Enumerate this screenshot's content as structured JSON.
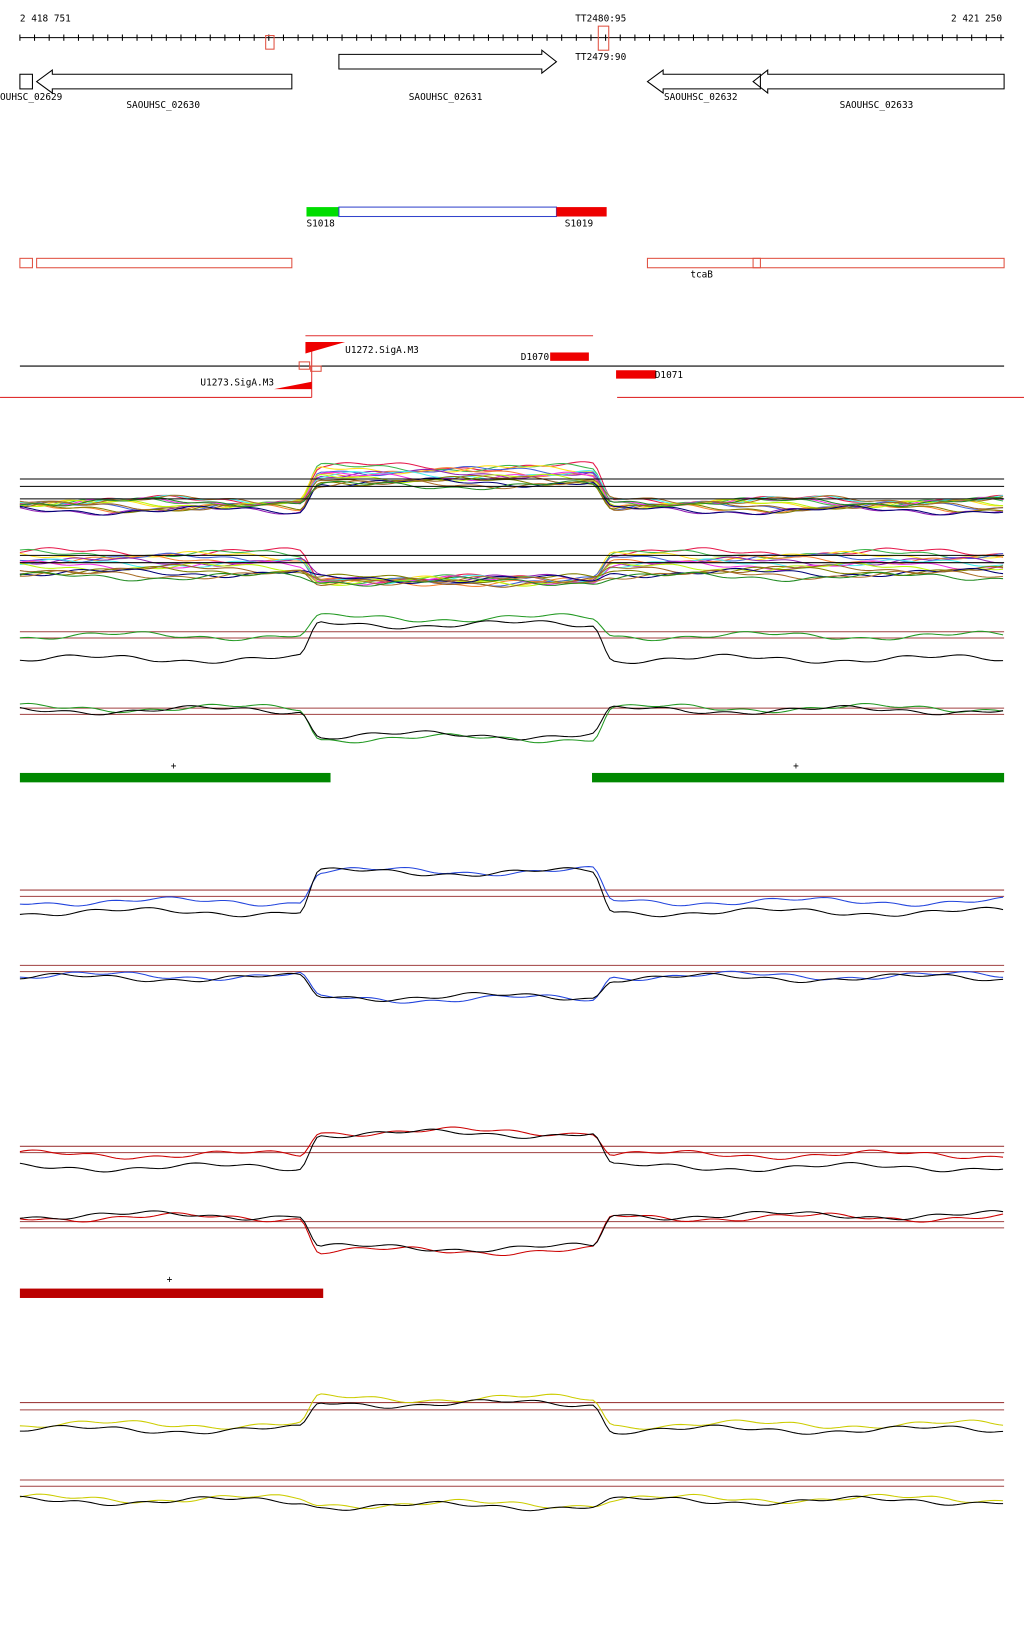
{
  "ruler": {
    "start": "2 418 751",
    "end": "2 421 250"
  },
  "terminators": [
    "TT2480:95",
    "TT2479:90"
  ],
  "genes": [
    "OUHSC_02629",
    "SAOUHSC_02630",
    "SAOUHSC_02631",
    "SAOUHSC_02632",
    "SAOUHSC_02633"
  ],
  "segments": [
    "S1018",
    "S1019"
  ],
  "operon_label": "tcaB",
  "promoters": [
    "U1272.SigA.M3",
    "D1070",
    "U1273.SigA.M3",
    "D1071"
  ],
  "strand_marks": [
    "+",
    "+",
    "+"
  ]
}
